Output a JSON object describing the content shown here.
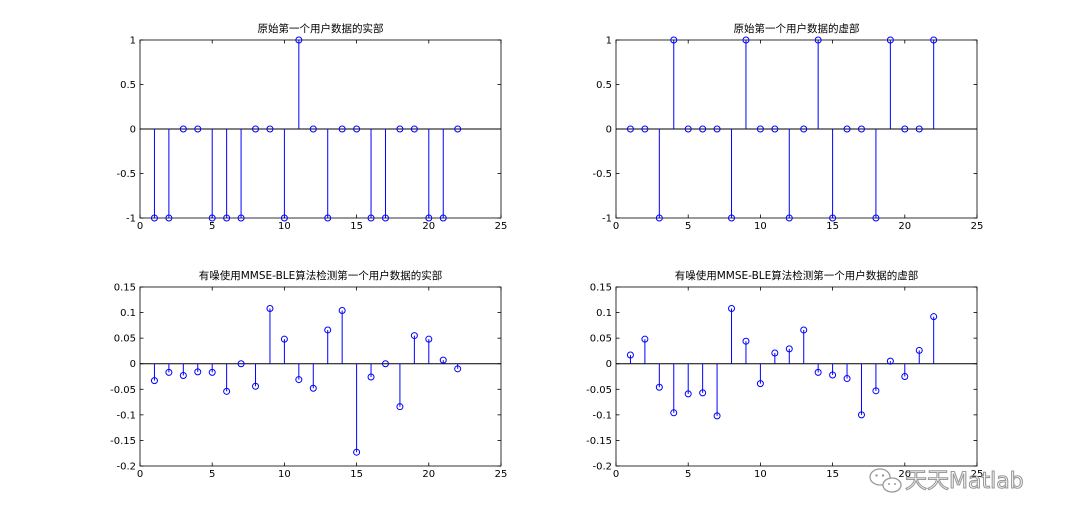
{
  "watermark": {
    "text": "天天Matlab"
  },
  "chart_data": [
    {
      "type": "stem",
      "title": "原始第一个用户数据的实部",
      "xlim": [
        0,
        25
      ],
      "ylim": [
        -1,
        1
      ],
      "xticks": [
        0,
        5,
        10,
        15,
        20,
        25
      ],
      "yticks": [
        -1,
        -0.5,
        0,
        0.5,
        1
      ],
      "yticklabels": [
        "-1",
        "-0.5",
        "0",
        "0.5",
        "1"
      ],
      "x": [
        1,
        2,
        3,
        4,
        5,
        6,
        7,
        8,
        9,
        10,
        11,
        12,
        13,
        14,
        15,
        16,
        17,
        18,
        19,
        20,
        21,
        22
      ],
      "values": [
        -1,
        -1,
        0,
        0,
        -1,
        -1,
        -1,
        0,
        0,
        -1,
        1,
        0,
        -1,
        0,
        0,
        -1,
        -1,
        0,
        0,
        -1,
        -1,
        0
      ],
      "color": "#0000ff",
      "baseline_color": "#000000"
    },
    {
      "type": "stem",
      "title": "原始第一个用户数据的虚部",
      "xlim": [
        0,
        25
      ],
      "ylim": [
        -1,
        1
      ],
      "xticks": [
        0,
        5,
        10,
        15,
        20,
        25
      ],
      "yticks": [
        -1,
        -0.5,
        0,
        0.5,
        1
      ],
      "yticklabels": [
        "-1",
        "-0.5",
        "0",
        "0.5",
        "1"
      ],
      "x": [
        1,
        2,
        3,
        4,
        5,
        6,
        7,
        8,
        9,
        10,
        11,
        12,
        13,
        14,
        15,
        16,
        17,
        18,
        19,
        20,
        21,
        22
      ],
      "values": [
        0,
        0,
        -1,
        1,
        0,
        0,
        0,
        -1,
        1,
        0,
        0,
        -1,
        0,
        1,
        -1,
        0,
        0,
        -1,
        1,
        0,
        0,
        1
      ],
      "color": "#0000ff",
      "baseline_color": "#000000"
    },
    {
      "type": "stem",
      "title": "有噪使用MMSE-BLE算法检测第一个用户数据的实部",
      "xlim": [
        0,
        25
      ],
      "ylim": [
        -0.2,
        0.15
      ],
      "xticks": [
        0,
        5,
        10,
        15,
        20,
        25
      ],
      "yticks": [
        -0.2,
        -0.15,
        -0.1,
        -0.05,
        0,
        0.05,
        0.1,
        0.15
      ],
      "yticklabels": [
        "-0.2",
        "-0.15",
        "-0.1",
        "-0.05",
        "0",
        "0.05",
        "0.1",
        "0.15"
      ],
      "x": [
        1,
        2,
        3,
        4,
        5,
        6,
        7,
        8,
        9,
        10,
        11,
        12,
        13,
        14,
        15,
        16,
        17,
        18,
        19,
        20,
        21,
        22
      ],
      "values": [
        -0.033,
        -0.017,
        -0.023,
        -0.016,
        -0.017,
        -0.054,
        0,
        -0.044,
        0.108,
        0.048,
        -0.031,
        -0.048,
        0.066,
        0.104,
        -0.173,
        -0.026,
        0,
        -0.084,
        0.055,
        0.048,
        0.007,
        -0.01
      ],
      "color": "#0000ff",
      "baseline_color": "#000000"
    },
    {
      "type": "stem",
      "title": "有噪使用MMSE-BLE算法检测第一个用户数据的虚部",
      "xlim": [
        0,
        25
      ],
      "ylim": [
        -0.2,
        0.15
      ],
      "xticks": [
        0,
        5,
        10,
        15,
        20,
        25
      ],
      "yticks": [
        -0.2,
        -0.15,
        -0.1,
        -0.05,
        0,
        0.05,
        0.1,
        0.15
      ],
      "yticklabels": [
        "-0.2",
        "-0.15",
        "-0.1",
        "-0.05",
        "0",
        "0.05",
        "0.1",
        "0.15"
      ],
      "x": [
        1,
        2,
        3,
        4,
        5,
        6,
        7,
        8,
        9,
        10,
        11,
        12,
        13,
        14,
        15,
        16,
        17,
        18,
        19,
        20,
        21,
        22
      ],
      "values": [
        0.017,
        0.048,
        -0.046,
        -0.096,
        -0.059,
        -0.057,
        -0.102,
        0.108,
        0.044,
        -0.039,
        0.021,
        0.029,
        0.066,
        -0.017,
        -0.022,
        -0.029,
        -0.1,
        -0.053,
        0.005,
        -0.025,
        0.026,
        0.092
      ],
      "color": "#0000ff",
      "baseline_color": "#000000"
    }
  ]
}
